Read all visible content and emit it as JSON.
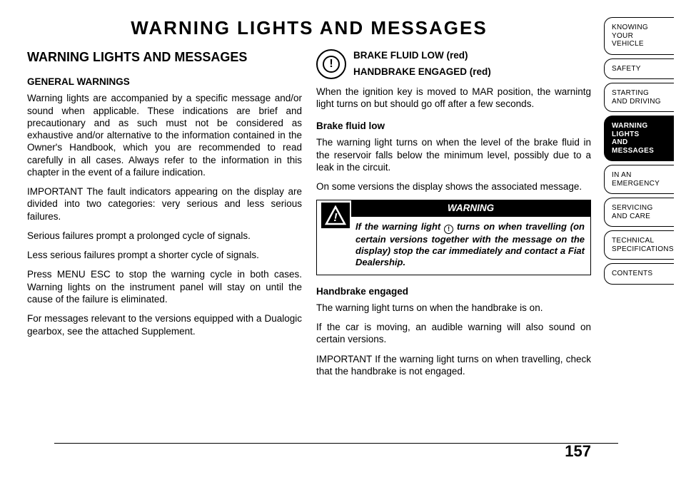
{
  "page": {
    "number": "157",
    "main_title": "WARNING LIGHTS AND MESSAGES"
  },
  "left": {
    "section_title": "WARNING LIGHTS AND MESSAGES",
    "general_heading": "GENERAL WARNINGS",
    "p1": "Warning lights are accompanied by a specific message and/or sound when applicable. These indications are brief and precautionary and as such must not be considered as exhaustive and/or alternative to the information contained in the Owner's Handbook, which you are recommended to read carefully in all cases. Always refer to the information in this chapter in the event of a failure indication.",
    "p2": "IMPORTANT The fault indicators appearing on the display are divided into two categories: very serious and less serious failures.",
    "p3": "Serious failures prompt a prolonged cycle of signals.",
    "p4": "Less serious failures prompt a shorter cycle of signals.",
    "p5": "Press MENU ESC to stop the warning cycle in both cases. Warning lights on the instrument panel will stay on until the cause of the failure is eliminated.",
    "p6": "For messages relevant to the versions equipped with a Dualogic gearbox, see the attached Supplement."
  },
  "right": {
    "brake_heading_1": "BRAKE FLUID LOW (red)",
    "brake_heading_2": "HANDBRAKE ENGAGED (red)",
    "brake_intro": "When the ignition key is moved to MAR position, the warnintg light turns on but should go off after a few seconds.",
    "bfl_heading": "Brake fluid low",
    "bfl_p1": "The warning light turns on when the level of the brake fluid in the reservoir falls below the minimum level, possibly due to a leak in the circuit.",
    "bfl_p2": "On some versions the display shows the associated message.",
    "warning_label": "WARNING",
    "warning_text_before": "If the warning light ",
    "warning_text_after": " turns on when travelling (on certain versions together with the message on the display) stop the car immediately and contact a Fiat Dealership.",
    "hb_heading": "Handbrake engaged",
    "hb_p1": "The warning light turns on when the handbrake is on.",
    "hb_p2": "If the car is moving, an audible warning will also sound on certain versions.",
    "hb_p3": "IMPORTANT If the warning light turns on when travelling, check that the handbrake is not engaged."
  },
  "tabs": [
    {
      "l1": "KNOWING",
      "l2": "YOUR",
      "l3": "VEHICLE",
      "active": false
    },
    {
      "l1": "SAFETY",
      "active": false
    },
    {
      "l1": "STARTING",
      "l2": "AND DRIVING",
      "active": false
    },
    {
      "l1": "WARNING LIGHTS",
      "l2": "AND MESSAGES",
      "active": true
    },
    {
      "l1": "IN AN",
      "l2": "EMERGENCY",
      "active": false
    },
    {
      "l1": "SERVICING",
      "l2": "AND CARE",
      "active": false
    },
    {
      "l1": "TECHNICAL",
      "l2": "SPECIFICATIONS",
      "active": false
    },
    {
      "l1": "CONTENTS",
      "active": false
    }
  ]
}
